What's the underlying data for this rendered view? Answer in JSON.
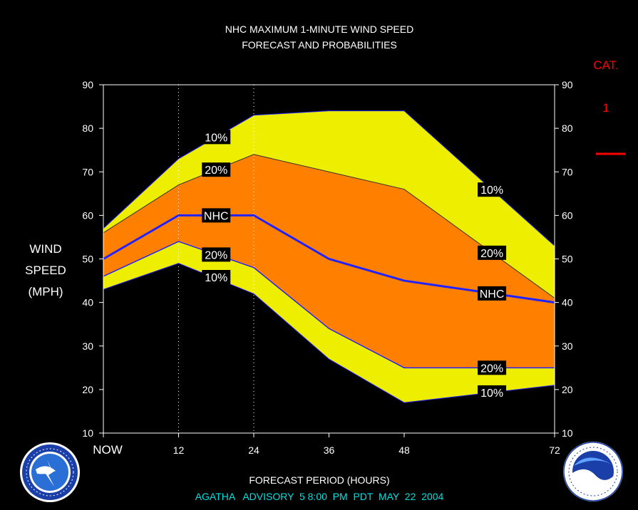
{
  "title_line1": "NHC MAXIMUM 1-MINUTE WIND SPEED",
  "title_line2": "FORECAST AND PROBABILITIES",
  "ylabel_lines": [
    "WIND",
    "SPEED",
    "(MPH)"
  ],
  "xlabel": "FORECAST PERIOD (HOURS)",
  "advisory": "AGATHA   ADVISORY  5 8:00  PM  PDT  MAY  22  2004",
  "category": {
    "label": "CAT.",
    "value": "1",
    "color": "#ff0000"
  },
  "logos": {
    "left": "nws-logo",
    "right": "noaa-logo"
  },
  "chart_data": {
    "type": "area",
    "x": [
      0,
      12,
      24,
      36,
      48,
      72
    ],
    "x_tick_labels": [
      "NOW",
      "12",
      "24",
      "36",
      "48",
      "72"
    ],
    "xlim": [
      0,
      72
    ],
    "ylim": [
      10,
      90
    ],
    "y_ticks": [
      10,
      20,
      30,
      40,
      50,
      60,
      70,
      80,
      90
    ],
    "grid_x": [
      12,
      24
    ],
    "colors": {
      "band_10": "#eeee00",
      "band_20": "#ff8000",
      "nhc_line": "#2222ff",
      "background": "#000000"
    },
    "series": [
      {
        "key": "upper10",
        "values": [
          57,
          73,
          83,
          84,
          84,
          53
        ],
        "label": "10%"
      },
      {
        "key": "upper20",
        "values": [
          56,
          67,
          74,
          70,
          66,
          41
        ],
        "label": "20%"
      },
      {
        "key": "nhc",
        "values": [
          50,
          60,
          60,
          50,
          45,
          40
        ],
        "label": "NHC"
      },
      {
        "key": "lower20",
        "values": [
          46,
          54,
          48,
          34,
          25,
          25
        ],
        "label": "20%"
      },
      {
        "key": "lower10",
        "values": [
          43,
          49,
          42,
          27,
          17,
          21
        ],
        "label": "10%"
      }
    ]
  }
}
